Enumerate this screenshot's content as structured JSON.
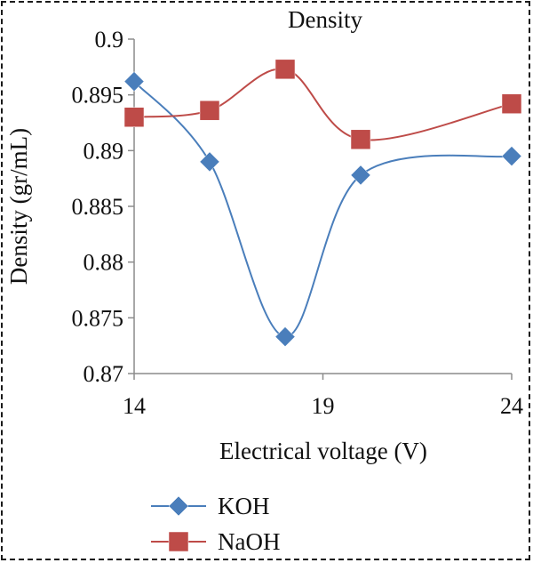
{
  "chart_data": {
    "type": "line",
    "title": "Density",
    "xlabel": "Electrical voltage (V)",
    "ylabel": "Density (gr/mL)",
    "xlim": [
      14,
      24
    ],
    "ylim": [
      0.87,
      0.9
    ],
    "x_ticks": [
      "14",
      "19",
      "24"
    ],
    "y_ticks": [
      "0.9",
      "0.895",
      "0.89",
      "0.885",
      "0.88",
      "0.875",
      "0.87"
    ],
    "x": [
      14,
      16,
      18,
      20,
      24
    ],
    "series": [
      {
        "name": "KOH",
        "values": [
          0.8962,
          0.889,
          0.8733,
          0.8878,
          0.8895
        ],
        "color": "#4a7ebb",
        "marker": "diamond"
      },
      {
        "name": "NaOH",
        "values": [
          0.893,
          0.8936,
          0.8973,
          0.891,
          0.8942
        ],
        "color": "#be4b48",
        "marker": "square"
      }
    ],
    "grid": false,
    "legend_position": "bottom"
  }
}
